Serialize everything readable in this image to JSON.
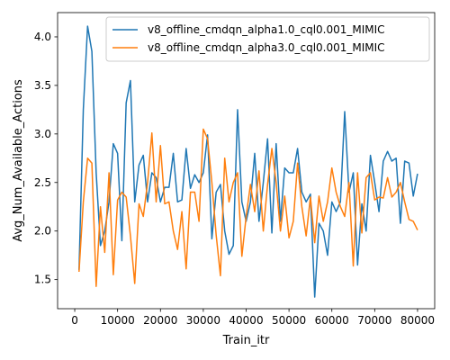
{
  "chart_data": {
    "type": "line",
    "title": "",
    "xlabel": "Train_itr",
    "ylabel": "Avg_Num_Available_Actions",
    "xlim": [
      -4000,
      84000
    ],
    "ylim": [
      1.2,
      4.25
    ],
    "xticks": [
      0,
      10000,
      20000,
      30000,
      40000,
      50000,
      60000,
      70000,
      80000
    ],
    "yticks": [
      1.5,
      2.0,
      2.5,
      3.0,
      3.5,
      4.0
    ],
    "grid": false,
    "legend_position": "top-right",
    "x": [
      1000,
      2000,
      3000,
      4000,
      5000,
      6000,
      7000,
      8000,
      9000,
      10000,
      11000,
      12000,
      13000,
      14000,
      15000,
      16000,
      17000,
      18000,
      19000,
      20000,
      21000,
      22000,
      23000,
      24000,
      25000,
      26000,
      27000,
      28000,
      29000,
      30000,
      31000,
      32000,
      33000,
      34000,
      35000,
      36000,
      37000,
      38000,
      39000,
      40000,
      41000,
      42000,
      43000,
      44000,
      45000,
      46000,
      47000,
      48000,
      49000,
      50000,
      51000,
      52000,
      53000,
      54000,
      55000,
      56000,
      57000,
      58000,
      59000,
      60000,
      61000,
      62000,
      63000,
      64000,
      65000,
      66000,
      67000,
      68000,
      69000,
      70000,
      71000,
      72000,
      73000,
      74000,
      75000,
      76000,
      77000,
      78000,
      79000,
      80000
    ],
    "series": [
      {
        "name": "v8_offline_cmdqn_alpha1.0_cql0.001_MIMIC",
        "color": "#1f77b4",
        "values": [
          1.6,
          3.25,
          4.11,
          3.85,
          2.6,
          1.85,
          2.0,
          2.3,
          2.9,
          2.8,
          1.9,
          3.32,
          3.55,
          2.3,
          2.68,
          2.78,
          2.3,
          2.6,
          2.55,
          2.3,
          2.45,
          2.45,
          2.8,
          2.3,
          2.32,
          2.85,
          2.44,
          2.58,
          2.5,
          2.6,
          2.99,
          1.92,
          2.4,
          2.48,
          2.0,
          1.76,
          1.85,
          3.25,
          2.3,
          2.1,
          2.3,
          2.8,
          2.1,
          2.5,
          2.95,
          1.98,
          2.9,
          2.1,
          2.65,
          2.6,
          2.6,
          2.85,
          2.4,
          2.3,
          2.38,
          1.32,
          2.08,
          2.0,
          1.75,
          2.3,
          2.2,
          2.3,
          3.23,
          2.4,
          2.6,
          1.65,
          2.28,
          2.0,
          2.78,
          2.5,
          2.2,
          2.72,
          2.82,
          2.72,
          2.75,
          2.08,
          2.72,
          2.7,
          2.36,
          2.59
        ]
      },
      {
        "name": "v8_offline_cmdqn_alpha3.0_cql0.001_MIMIC",
        "color": "#ff7f0e",
        "values": [
          1.58,
          2.3,
          2.75,
          2.7,
          1.43,
          2.25,
          1.78,
          2.6,
          1.55,
          2.32,
          2.4,
          2.35,
          1.95,
          1.46,
          2.28,
          2.15,
          2.5,
          3.01,
          2.3,
          2.88,
          2.28,
          2.3,
          2.0,
          1.81,
          2.2,
          1.61,
          2.4,
          2.4,
          2.1,
          3.05,
          2.95,
          2.5,
          1.96,
          1.54,
          2.75,
          2.3,
          2.5,
          2.6,
          1.74,
          2.15,
          2.48,
          2.2,
          2.62,
          2.0,
          2.48,
          2.85,
          2.5,
          2.0,
          2.36,
          1.93,
          2.1,
          2.7,
          2.25,
          1.95,
          2.35,
          1.88,
          2.36,
          2.1,
          2.3,
          2.65,
          2.4,
          2.25,
          2.15,
          2.5,
          1.64,
          2.6,
          1.98,
          2.55,
          2.6,
          2.32,
          2.35,
          2.34,
          2.55,
          2.35,
          2.4,
          2.5,
          2.3,
          2.12,
          2.1,
          2.01
        ]
      }
    ]
  }
}
